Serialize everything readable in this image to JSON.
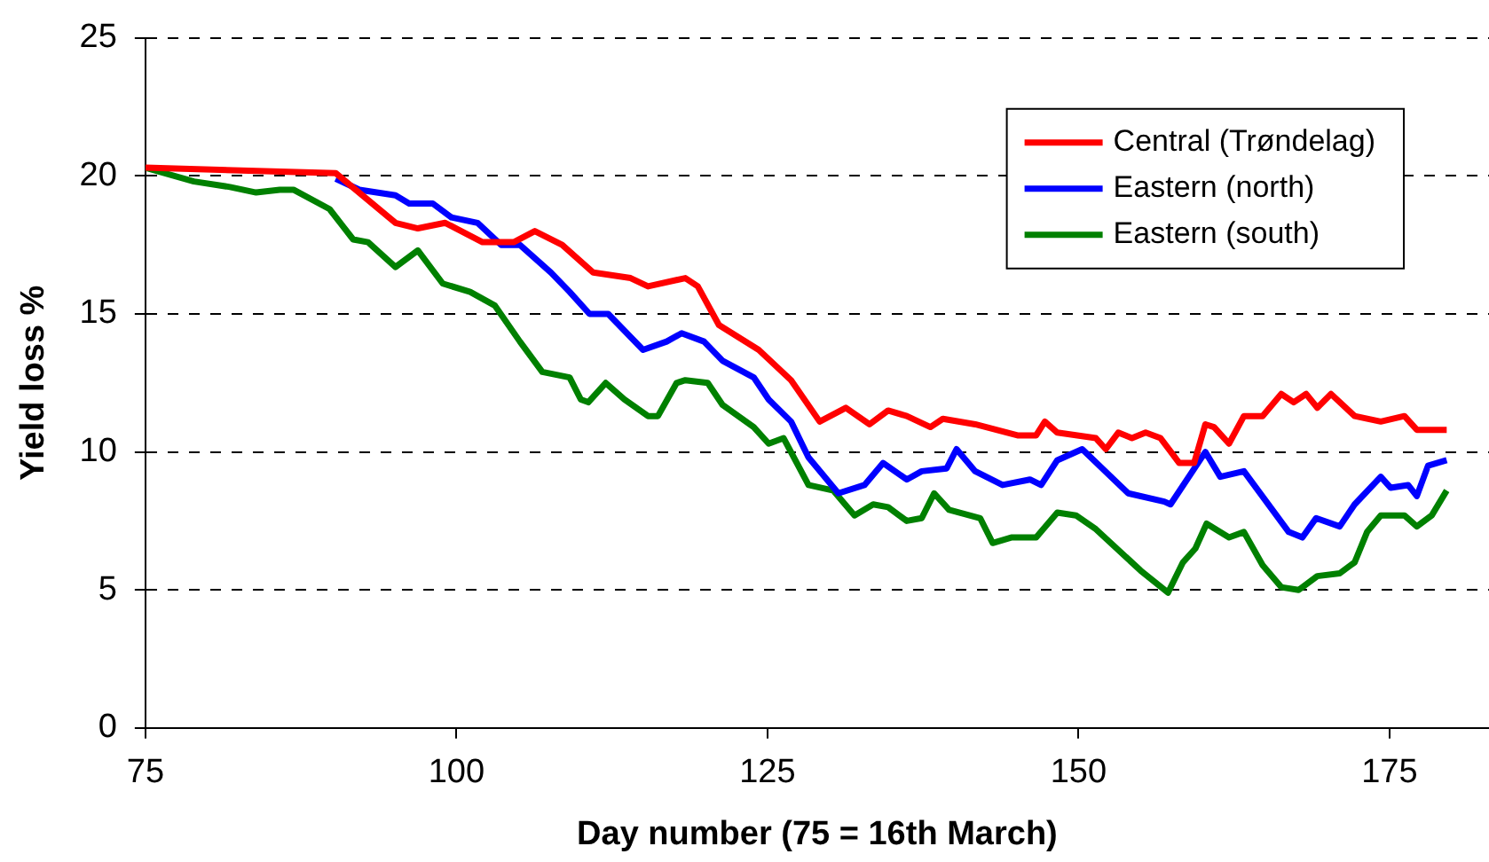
{
  "chart_data": {
    "type": "line",
    "xlabel": "Day number (75 = 16th March)",
    "ylabel": "Yield loss %",
    "xlim": [
      75,
      183
    ],
    "xticks": [
      75,
      100,
      125,
      150,
      175
    ],
    "ylim": [
      0,
      25
    ],
    "yticks": [
      0,
      5,
      10,
      15,
      20,
      25
    ],
    "grid": "y",
    "legend": "top right",
    "marker": "none",
    "line_style": "solid",
    "series": [
      {
        "name": "Central (Trøndelag)",
        "color": "#ff0000",
        "x": [
          75,
          90.3,
          95.1,
          96.9,
          99.1,
          102.1,
          104.6,
          106.3,
          108.5,
          111.0,
          114.0,
          115.4,
          118.4,
          119.4,
          121.1,
          124.3,
          126.9,
          129.2,
          131.3,
          133.2,
          134.7,
          136.2,
          138.1,
          139.1,
          141.7,
          145.1,
          146.6,
          147.3,
          148.3,
          151.4,
          152.2,
          153.2,
          154.3,
          155.4,
          156.6,
          158.1,
          159.3,
          160.2,
          160.9,
          162.1,
          163.3,
          164.8,
          166.3,
          167.3,
          168.3,
          169.2,
          170.3,
          172.2,
          174.3,
          176.2,
          177.2,
          179.6
        ],
        "values": [
          20.3,
          20.1,
          18.3,
          18.1,
          18.3,
          17.6,
          17.6,
          18.0,
          17.5,
          16.5,
          16.3,
          16.0,
          16.3,
          16.0,
          14.6,
          13.7,
          12.6,
          11.1,
          11.6,
          11.0,
          11.5,
          11.3,
          10.9,
          11.2,
          11.0,
          10.6,
          10.6,
          11.1,
          10.7,
          10.5,
          10.1,
          10.7,
          10.5,
          10.7,
          10.5,
          9.6,
          9.6,
          11.0,
          10.9,
          10.3,
          11.3,
          11.3,
          12.1,
          11.8,
          12.1,
          11.6,
          12.1,
          11.3,
          11.1,
          11.3,
          10.8,
          10.8
        ]
      },
      {
        "name": "Eastern (north)",
        "color": "#0000ff",
        "x": [
          90.3,
          92.2,
          95.1,
          96.2,
          98.1,
          99.6,
          101.7,
          103.6,
          105.1,
          107.6,
          109.1,
          110.7,
          112.2,
          115.0,
          116.9,
          118.1,
          119.9,
          121.4,
          123.9,
          125.1,
          126.9,
          128.3,
          130.7,
          132.8,
          134.3,
          136.2,
          137.4,
          139.4,
          140.2,
          141.7,
          143.9,
          146.1,
          147.0,
          148.3,
          150.3,
          154.0,
          156.9,
          157.4,
          160.2,
          161.4,
          163.3,
          166.9,
          168.0,
          169.1,
          171.0,
          172.2,
          174.3,
          175.1,
          176.5,
          177.2,
          178.1,
          179.6
        ],
        "values": [
          19.9,
          19.5,
          19.3,
          19.0,
          19.0,
          18.5,
          18.3,
          17.5,
          17.5,
          16.5,
          15.8,
          15.0,
          15.0,
          13.7,
          14.0,
          14.3,
          14.0,
          13.3,
          12.7,
          11.9,
          11.1,
          9.8,
          8.5,
          8.8,
          9.6,
          9.0,
          9.3,
          9.4,
          10.1,
          9.3,
          8.8,
          9.0,
          8.8,
          9.7,
          10.1,
          8.5,
          8.2,
          8.1,
          10.0,
          9.1,
          9.3,
          7.1,
          6.9,
          7.6,
          7.3,
          8.1,
          9.1,
          8.7,
          8.8,
          8.4,
          9.5,
          9.7
        ]
      },
      {
        "name": "Eastern (south)",
        "color": "#008000",
        "x": [
          75,
          78.9,
          81.8,
          83.9,
          85.8,
          86.9,
          89.8,
          91.7,
          92.9,
          95.1,
          96.9,
          98.9,
          101.1,
          103.1,
          105.1,
          106.9,
          109.1,
          110.0,
          110.6,
          112.0,
          113.5,
          115.4,
          116.2,
          117.7,
          118.4,
          120.2,
          121.4,
          123.9,
          125.1,
          126.3,
          128.3,
          130.3,
          132.0,
          133.5,
          134.7,
          136.2,
          137.4,
          138.4,
          139.6,
          142.1,
          143.1,
          144.6,
          145.5,
          146.6,
          148.3,
          149.8,
          151.4,
          155.0,
          157.2,
          158.4,
          159.4,
          160.3,
          162.1,
          163.3,
          164.8,
          166.3,
          167.7,
          169.2,
          171.0,
          172.2,
          173.2,
          174.3,
          176.2,
          177.2,
          178.4,
          179.6
        ],
        "values": [
          20.3,
          19.8,
          19.6,
          19.4,
          19.5,
          19.5,
          18.8,
          17.7,
          17.6,
          16.7,
          17.3,
          16.1,
          15.8,
          15.3,
          14.0,
          12.9,
          12.7,
          11.9,
          11.8,
          12.5,
          11.9,
          11.3,
          11.3,
          12.5,
          12.6,
          12.5,
          11.7,
          10.9,
          10.3,
          10.5,
          8.8,
          8.6,
          7.7,
          8.1,
          8.0,
          7.5,
          7.6,
          8.5,
          7.9,
          7.6,
          6.7,
          6.9,
          6.9,
          6.9,
          7.8,
          7.7,
          7.2,
          5.7,
          4.9,
          6.0,
          6.5,
          7.4,
          6.9,
          7.1,
          5.9,
          5.1,
          5.0,
          5.5,
          5.6,
          6.0,
          7.1,
          7.7,
          7.7,
          7.3,
          7.7,
          8.6
        ]
      }
    ]
  }
}
